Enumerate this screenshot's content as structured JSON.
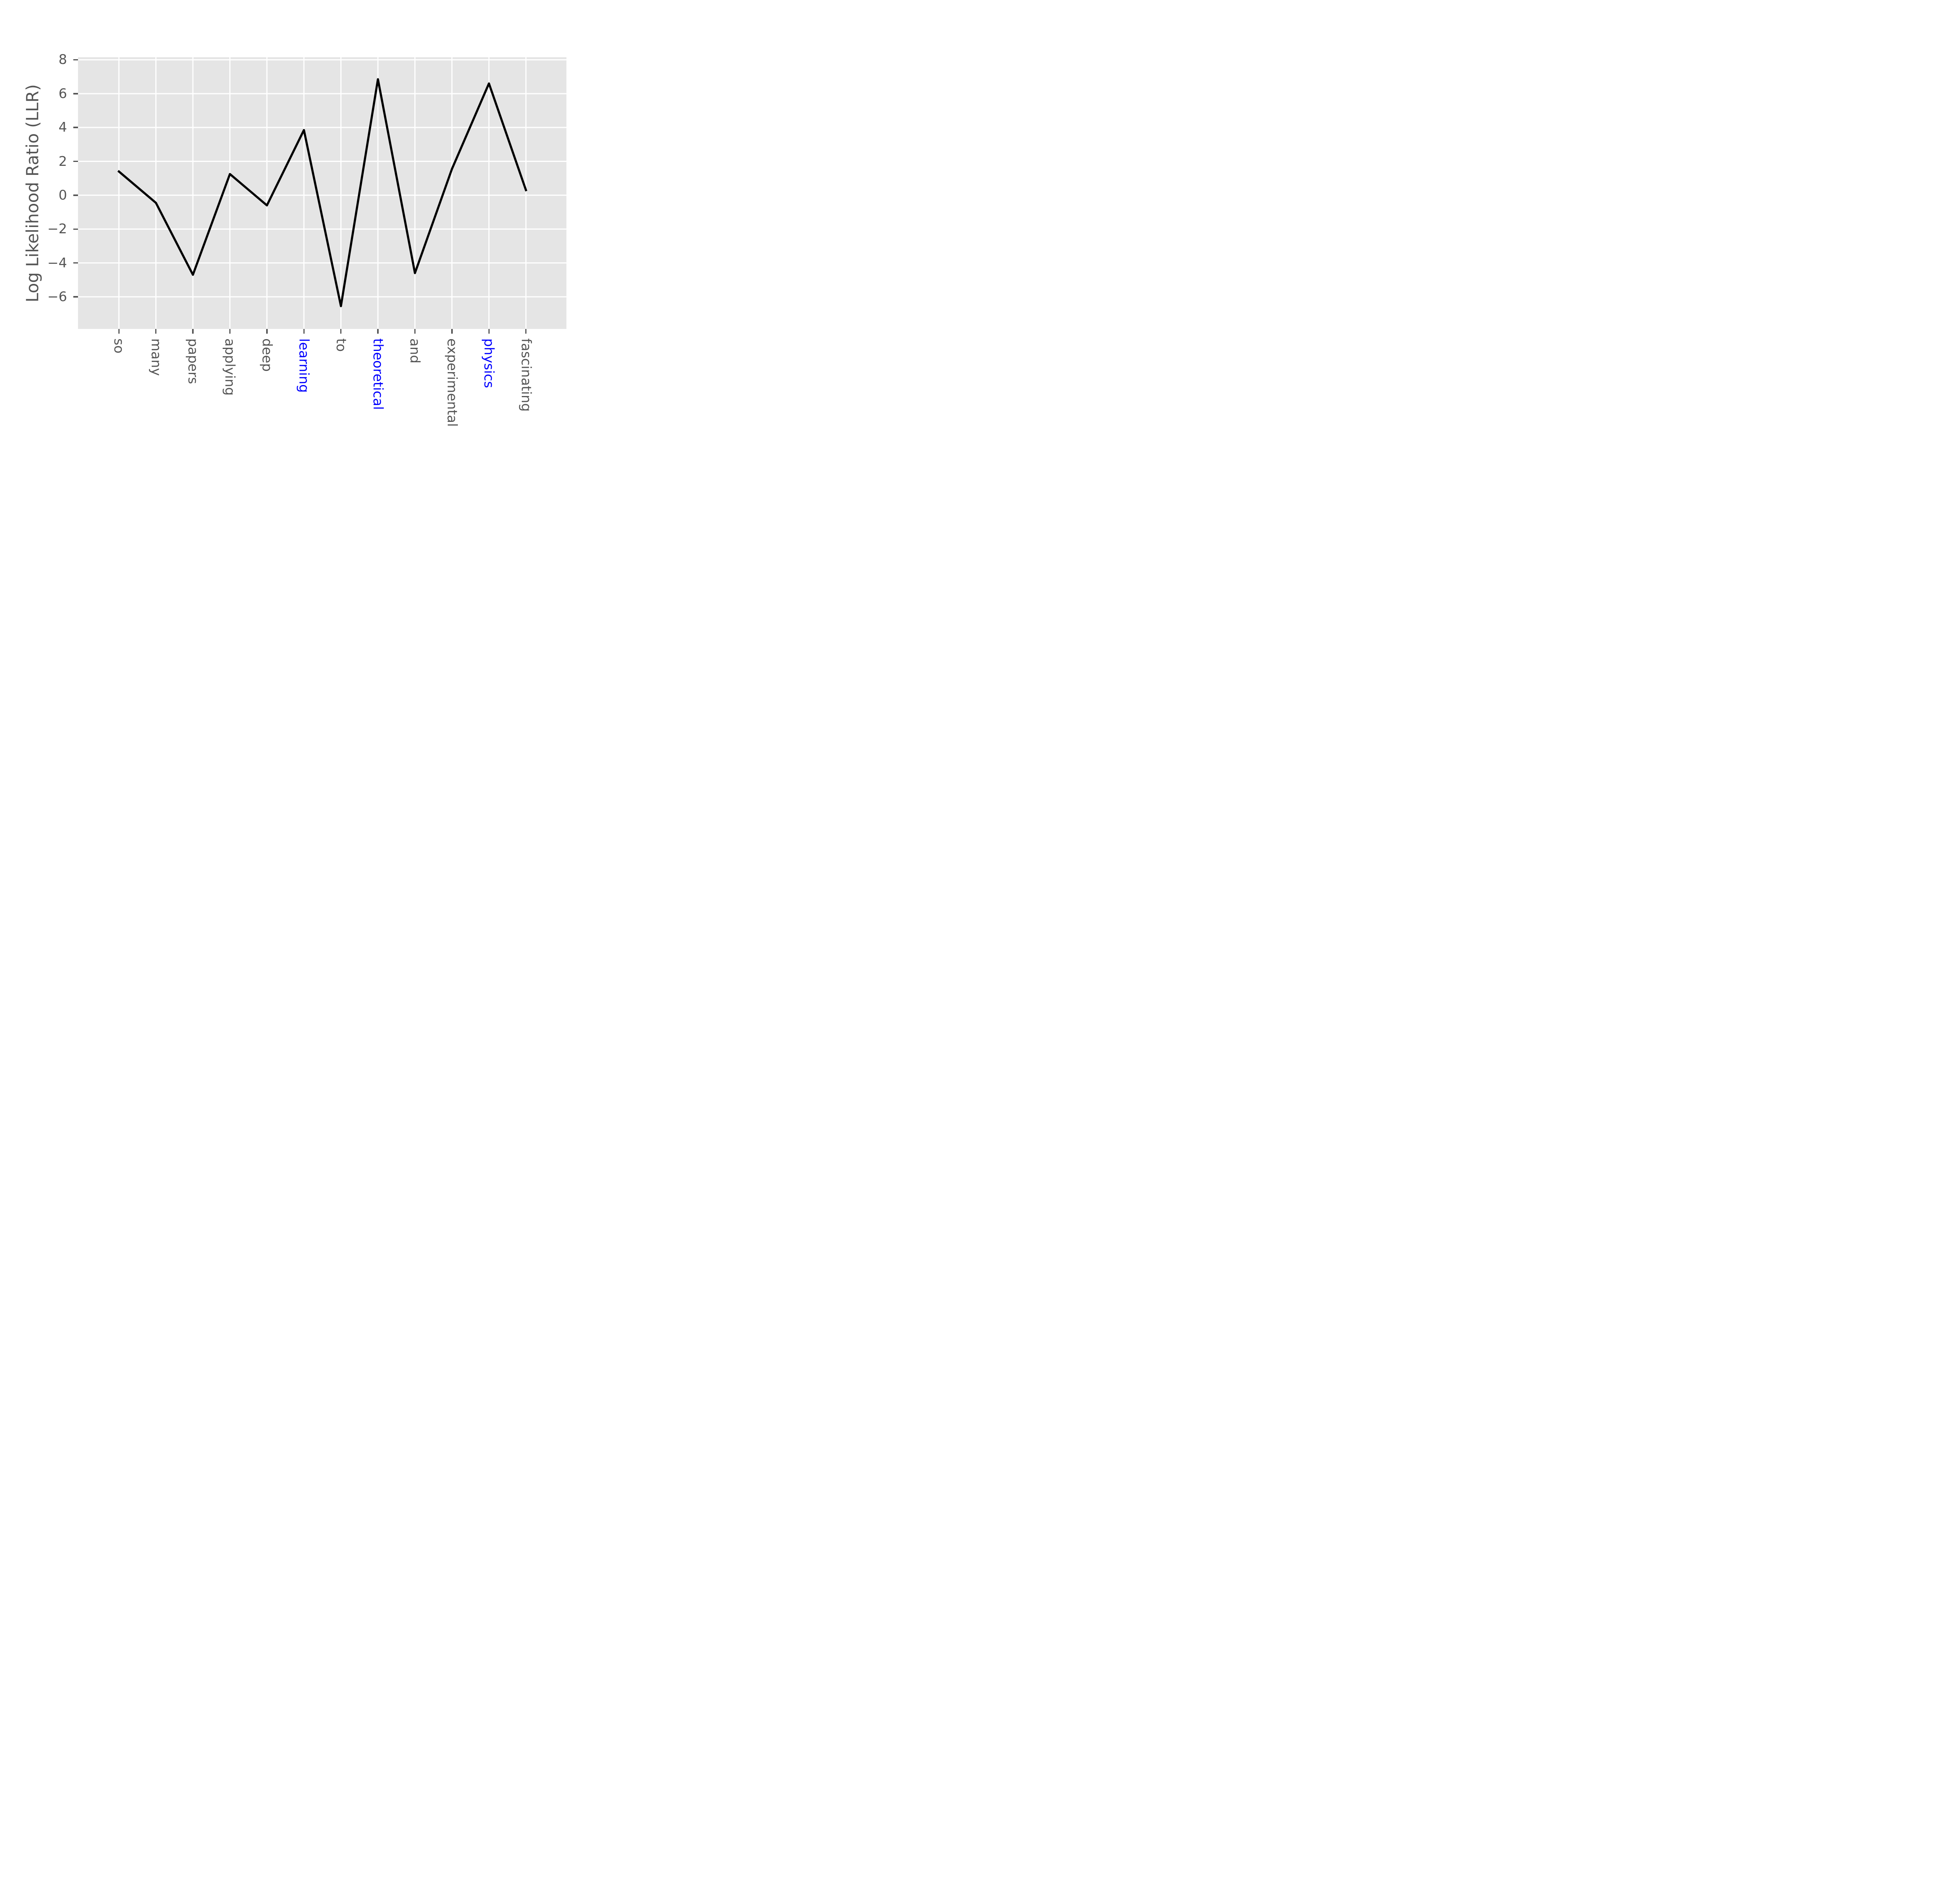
{
  "chart_data": {
    "type": "line",
    "title": "",
    "xlabel": "",
    "ylabel": "Log Likelihood Ratio (LLR)",
    "categories": [
      "so",
      "many",
      "papers",
      "applying",
      "deep",
      "learning",
      "to",
      "theoretical",
      "and",
      "experimental",
      "physics",
      "fascinating"
    ],
    "values": [
      1.4,
      -0.45,
      -4.7,
      1.25,
      -0.6,
      3.85,
      -6.55,
      6.85,
      -4.6,
      1.55,
      6.6,
      0.3
    ],
    "highlighted_categories": [
      "learning",
      "theoretical",
      "physics"
    ],
    "yticks": [
      8,
      6,
      4,
      2,
      0,
      -2,
      -4,
      -6
    ],
    "ylim": [
      -7.9,
      8.15
    ],
    "grid": true,
    "legend": false,
    "colors": {
      "line": "#000000",
      "plot_background": "#e5e5e5",
      "grid": "#ffffff",
      "tick_and_label": "#555555",
      "highlighted_label": "#0000ff",
      "figure_background": "#ffffff"
    }
  }
}
